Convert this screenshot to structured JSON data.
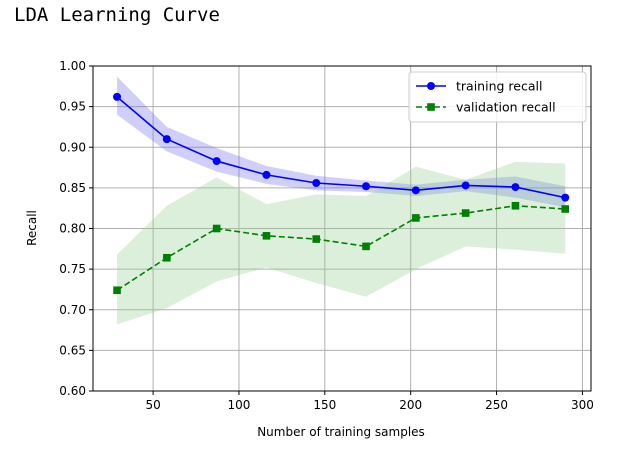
{
  "page": {
    "title": "LDA Learning Curve"
  },
  "chart_data": {
    "type": "line",
    "title": "",
    "xlabel": "Number of training samples",
    "ylabel": "Recall",
    "xlim": [
      15,
      305
    ],
    "ylim": [
      0.6,
      1.0
    ],
    "x_ticks": [
      50,
      100,
      150,
      200,
      250,
      300
    ],
    "y_ticks": [
      "0.60",
      "0.65",
      "0.70",
      "0.75",
      "0.80",
      "0.85",
      "0.90",
      "0.95",
      "1.00"
    ],
    "grid": true,
    "legend_position": "top-right",
    "series": [
      {
        "name": "training recall",
        "color": "#0000ff",
        "band_color": "#6b6bf0",
        "line_style": "solid",
        "marker": "circle",
        "x": [
          29,
          58,
          87,
          116,
          145,
          174,
          203,
          232,
          261,
          290
        ],
        "y": [
          0.962,
          0.91,
          0.883,
          0.866,
          0.856,
          0.852,
          0.847,
          0.853,
          0.851,
          0.838
        ],
        "band_upper": [
          0.987,
          0.925,
          0.899,
          0.877,
          0.865,
          0.859,
          0.854,
          0.86,
          0.864,
          0.852
        ],
        "band_lower": [
          0.94,
          0.895,
          0.87,
          0.855,
          0.847,
          0.845,
          0.84,
          0.846,
          0.838,
          0.826
        ]
      },
      {
        "name": "validation recall",
        "color": "#008000",
        "band_color": "#8fcc8f",
        "line_style": "dashed",
        "marker": "square",
        "x": [
          29,
          58,
          87,
          116,
          145,
          174,
          203,
          232,
          261,
          290
        ],
        "y": [
          0.724,
          0.764,
          0.8,
          0.791,
          0.787,
          0.778,
          0.813,
          0.819,
          0.828,
          0.824
        ],
        "band_upper": [
          0.768,
          0.828,
          0.863,
          0.83,
          0.842,
          0.84,
          0.876,
          0.86,
          0.882,
          0.88
        ],
        "band_lower": [
          0.682,
          0.702,
          0.735,
          0.752,
          0.733,
          0.716,
          0.75,
          0.778,
          0.774,
          0.769
        ]
      }
    ]
  }
}
